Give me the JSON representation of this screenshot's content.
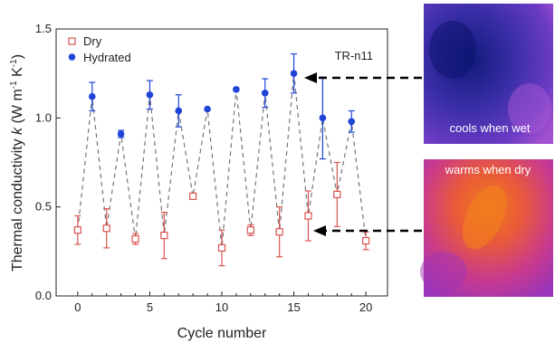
{
  "chart_data": {
    "type": "scatter",
    "title": "",
    "xlabel": "Cycle number",
    "ylabel": {
      "main": "Thermal conductivity",
      "symbol": "k",
      "unit_open": "(W m",
      "sup1": "-1",
      "mid": " K",
      "sup2": "-1",
      "unit_close": ")"
    },
    "xlim": [
      -1.5,
      21.5
    ],
    "ylim": [
      0,
      1.5
    ],
    "x_ticks": [
      "0",
      "5",
      "10",
      "15",
      "20"
    ],
    "y_ticks": [
      "0.0",
      "0.5",
      "1.0",
      "1.5"
    ],
    "grid": false,
    "legend_position": "top-left",
    "annotation": "TR-n11",
    "series": [
      {
        "name": "Dry",
        "color": "#d9534f",
        "marker": "open-square",
        "x": [
          0,
          2,
          4,
          6,
          8,
          10,
          12,
          14,
          16,
          18,
          20
        ],
        "y": [
          0.37,
          0.38,
          0.32,
          0.34,
          0.56,
          0.27,
          0.37,
          0.36,
          0.45,
          0.57,
          0.31
        ],
        "err": [
          0.08,
          0.11,
          0.03,
          0.13,
          0.0,
          0.1,
          0.03,
          0.14,
          0.14,
          0.18,
          0.05
        ]
      },
      {
        "name": "Hydrated",
        "color": "#1f44d6",
        "marker": "filled-circle",
        "x": [
          1,
          3,
          5,
          7,
          9,
          11,
          13,
          15,
          17,
          19
        ],
        "y": [
          1.12,
          0.91,
          1.13,
          1.04,
          1.05,
          1.16,
          1.14,
          1.25,
          1.0,
          0.98
        ],
        "err": [
          0.08,
          0.02,
          0.08,
          0.09,
          0.0,
          0.0,
          0.08,
          0.11,
          0.23,
          0.06
        ]
      }
    ],
    "connector": {
      "color": "#777777",
      "style": "dashed"
    }
  },
  "images": [
    {
      "caption": "cools when wet",
      "points_to": "Hydrated cycle 15"
    },
    {
      "caption": "warms when dry",
      "points_to": "Dry cycle 14"
    }
  ]
}
